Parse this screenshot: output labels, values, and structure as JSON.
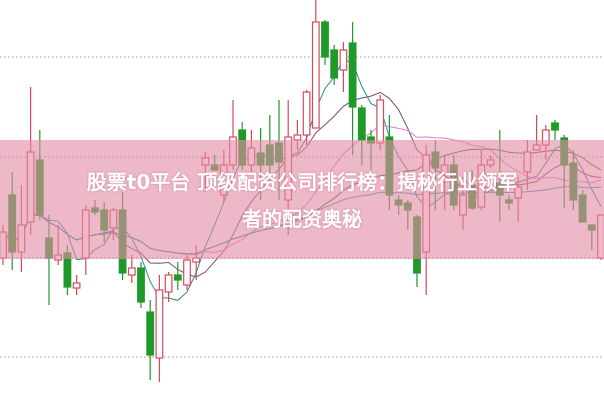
{
  "headline": {
    "line1": "股票t0平台 顶级配资公司排行榜：揭秘行业领军",
    "line2": "者的配资奥秘"
  },
  "chart_data": {
    "type": "candlestick",
    "title": "",
    "xlabel": "",
    "ylabel": "",
    "ylim": [
      0,
      40
    ],
    "grid": "horizontal dotted",
    "overlays": [
      "moving averages (5, 10, 20, 30, 60)"
    ],
    "colors": {
      "up": "#d9485a",
      "down": "#1e9a2a",
      "ma5": "#2b8a8a",
      "ma10": "#7a4a6a",
      "ma20": "#e07ad0",
      "ma30": "#4a6a2a",
      "ma60": "#2a9ab0",
      "banner": "#e28ca5"
    },
    "candles": [
      {
        "o": 14.2,
        "h": 17.5,
        "l": 13.5,
        "c": 16.8
      },
      {
        "o": 20.5,
        "h": 22.8,
        "l": 13.0,
        "c": 14.8
      },
      {
        "o": 14.8,
        "h": 21.5,
        "l": 12.8,
        "c": 17.5
      },
      {
        "o": 17.8,
        "h": 31.3,
        "l": 16.5,
        "c": 24.8
      },
      {
        "o": 24.0,
        "h": 27.0,
        "l": 18.0,
        "c": 18.5
      },
      {
        "o": 16.2,
        "h": 18.5,
        "l": 9.5,
        "c": 14.2
      },
      {
        "o": 14.0,
        "h": 17.5,
        "l": 13.5,
        "c": 14.5
      },
      {
        "o": 14.7,
        "h": 15.5,
        "l": 10.5,
        "c": 11.3
      },
      {
        "o": 11.2,
        "h": 12.5,
        "l": 10.5,
        "c": 11.7
      },
      {
        "o": 14.2,
        "h": 19.5,
        "l": 12.5,
        "c": 19.0
      },
      {
        "o": 19.2,
        "h": 20.0,
        "l": 18.5,
        "c": 18.8
      },
      {
        "o": 19.0,
        "h": 19.8,
        "l": 15.8,
        "c": 17.0
      },
      {
        "o": 17.2,
        "h": 19.2,
        "l": 16.0,
        "c": 19.0
      },
      {
        "o": 19.0,
        "h": 20.8,
        "l": 12.0,
        "c": 12.7
      },
      {
        "o": 12.5,
        "h": 14.5,
        "l": 11.7,
        "c": 13.2
      },
      {
        "o": 13.2,
        "h": 13.8,
        "l": 9.2,
        "c": 9.8
      },
      {
        "o": 8.8,
        "h": 10.0,
        "l": 2.0,
        "c": 4.5
      },
      {
        "o": 4.2,
        "h": 12.5,
        "l": 1.8,
        "c": 11.0
      },
      {
        "o": 10.8,
        "h": 12.8,
        "l": 9.8,
        "c": 12.5
      },
      {
        "o": 12.5,
        "h": 13.8,
        "l": 11.0,
        "c": 12.0
      },
      {
        "o": 11.5,
        "h": 14.5,
        "l": 11.0,
        "c": 14.0
      },
      {
        "o": 13.8,
        "h": 15.5,
        "l": 12.0,
        "c": 14.2
      },
      {
        "o": 23.5,
        "h": 24.8,
        "l": 20.8,
        "c": 24.2
      },
      {
        "o": 23.5,
        "h": 24.5,
        "l": 23.0,
        "c": 23.0
      },
      {
        "o": 20.5,
        "h": 25.0,
        "l": 19.8,
        "c": 23.5
      },
      {
        "o": 23.5,
        "h": 30.0,
        "l": 23.0,
        "c": 26.3
      },
      {
        "o": 27.0,
        "h": 27.8,
        "l": 23.0,
        "c": 23.5
      },
      {
        "o": 23.5,
        "h": 27.0,
        "l": 22.8,
        "c": 25.2
      },
      {
        "o": 24.7,
        "h": 27.2,
        "l": 20.0,
        "c": 23.5
      },
      {
        "o": 25.5,
        "h": 28.5,
        "l": 22.5,
        "c": 23.5
      },
      {
        "o": 25.7,
        "h": 30.0,
        "l": 20.0,
        "c": 23.8
      },
      {
        "o": 20.0,
        "h": 30.0,
        "l": 16.5,
        "c": 26.3
      },
      {
        "o": 26.0,
        "h": 28.0,
        "l": 25.0,
        "c": 26.5
      },
      {
        "o": 26.5,
        "h": 31.0,
        "l": 25.5,
        "c": 30.8
      },
      {
        "o": 27.2,
        "h": 40.0,
        "l": 27.2,
        "c": 37.8
      },
      {
        "o": 37.8,
        "h": 38.0,
        "l": 33.5,
        "c": 34.3
      },
      {
        "o": 35.0,
        "h": 35.5,
        "l": 31.5,
        "c": 32.2
      },
      {
        "o": 33.0,
        "h": 35.8,
        "l": 30.8,
        "c": 35.0
      },
      {
        "o": 35.7,
        "h": 37.8,
        "l": 24.5,
        "c": 29.3
      },
      {
        "o": 29.2,
        "h": 29.5,
        "l": 23.5,
        "c": 26.0
      },
      {
        "o": 26.3,
        "h": 27.0,
        "l": 23.0,
        "c": 25.7
      },
      {
        "o": 25.7,
        "h": 30.5,
        "l": 25.0,
        "c": 30.0
      },
      {
        "o": 26.3,
        "h": 28.5,
        "l": 19.0,
        "c": 20.5
      },
      {
        "o": 20.0,
        "h": 20.5,
        "l": 18.5,
        "c": 19.5
      },
      {
        "o": 19.7,
        "h": 20.0,
        "l": 17.0,
        "c": 19.0
      },
      {
        "o": 18.3,
        "h": 18.5,
        "l": 11.3,
        "c": 12.7
      },
      {
        "o": 14.8,
        "h": 25.5,
        "l": 10.5,
        "c": 24.5
      },
      {
        "o": 24.8,
        "h": 26.0,
        "l": 19.0,
        "c": 23.2
      },
      {
        "o": 22.5,
        "h": 24.5,
        "l": 19.0,
        "c": 23.5
      },
      {
        "o": 23.5,
        "h": 24.5,
        "l": 19.0,
        "c": 19.5
      },
      {
        "o": 18.5,
        "h": 21.5,
        "l": 17.0,
        "c": 20.5
      },
      {
        "o": 21.5,
        "h": 23.0,
        "l": 19.0,
        "c": 19.2
      },
      {
        "o": 19.3,
        "h": 25.0,
        "l": 19.0,
        "c": 23.5
      },
      {
        "o": 23.5,
        "h": 24.5,
        "l": 23.2,
        "c": 24.0
      },
      {
        "o": 21.7,
        "h": 27.0,
        "l": 17.8,
        "c": 20.5
      },
      {
        "o": 20.0,
        "h": 20.5,
        "l": 19.0,
        "c": 19.7
      },
      {
        "o": 20.2,
        "h": 22.3,
        "l": 17.8,
        "c": 21.3
      },
      {
        "o": 22.8,
        "h": 26.0,
        "l": 21.0,
        "c": 24.8
      },
      {
        "o": 25.0,
        "h": 28.5,
        "l": 25.0,
        "c": 25.5
      },
      {
        "o": 25.5,
        "h": 27.5,
        "l": 24.0,
        "c": 27.0
      },
      {
        "o": 27.7,
        "h": 28.0,
        "l": 26.0,
        "c": 27.0
      },
      {
        "o": 26.2,
        "h": 26.5,
        "l": 19.2,
        "c": 23.5
      },
      {
        "o": 23.7,
        "h": 25.0,
        "l": 19.0,
        "c": 20.0
      },
      {
        "o": 20.5,
        "h": 21.0,
        "l": 17.8,
        "c": 17.8
      },
      {
        "o": 17.5,
        "h": 17.5,
        "l": 15.0,
        "c": 17.0
      },
      {
        "o": 14.2,
        "h": 18.5,
        "l": 14.0,
        "c": 18.5
      }
    ]
  }
}
